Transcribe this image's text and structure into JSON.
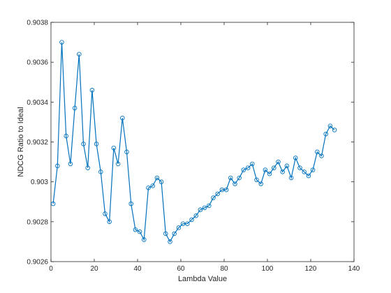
{
  "chart_data": {
    "type": "line",
    "title": "",
    "xlabel": "Lambda Value",
    "ylabel": "NDCG Ratio to Ideal",
    "xlim": [
      0,
      140
    ],
    "ylim": [
      0.9026,
      0.9038
    ],
    "xticks": [
      0,
      20,
      40,
      60,
      80,
      100,
      120,
      140
    ],
    "xtick_labels": [
      "0",
      "20",
      "40",
      "60",
      "80",
      "100",
      "120",
      "140"
    ],
    "yticks": [
      0.9026,
      0.9028,
      0.903,
      0.9032,
      0.9034,
      0.9036,
      0.9038
    ],
    "ytick_labels": [
      "0.9026",
      "0.9028",
      "0.903",
      "0.9032",
      "0.9034",
      "0.9036",
      "0.9038"
    ],
    "grid": false,
    "legend": "none",
    "color": "#0072bd",
    "marker": "circle",
    "series": [
      {
        "x": [
          1,
          3,
          5,
          7,
          9,
          11,
          13,
          15,
          17,
          19,
          21,
          23,
          25,
          27,
          29,
          31,
          33,
          35,
          37,
          39,
          41,
          43,
          45,
          47,
          49,
          51,
          53,
          55,
          57,
          59,
          61,
          63,
          65,
          67,
          69,
          71,
          73,
          75,
          77,
          79,
          81,
          83,
          85,
          87,
          89,
          91,
          93,
          95,
          97,
          99,
          101,
          103,
          105,
          107,
          109,
          111,
          113,
          115,
          117,
          119,
          121,
          123,
          125,
          127,
          129,
          131
        ],
        "values": [
          0.90289,
          0.90308,
          0.9037,
          0.90323,
          0.90309,
          0.90337,
          0.90364,
          0.90319,
          0.90307,
          0.90346,
          0.90319,
          0.90305,
          0.90284,
          0.9028,
          0.90317,
          0.90309,
          0.90332,
          0.90315,
          0.90289,
          0.90276,
          0.90275,
          0.90271,
          0.90297,
          0.90298,
          0.90302,
          0.903,
          0.90274,
          0.9027,
          0.90274,
          0.90277,
          0.90279,
          0.90279,
          0.90281,
          0.90283,
          0.90286,
          0.90287,
          0.90288,
          0.90292,
          0.90294,
          0.90296,
          0.90296,
          0.90302,
          0.90299,
          0.90302,
          0.90306,
          0.90307,
          0.90309,
          0.90301,
          0.90299,
          0.90306,
          0.90304,
          0.90307,
          0.9031,
          0.90305,
          0.90308,
          0.90302,
          0.90312,
          0.90307,
          0.90305,
          0.90303,
          0.90306,
          0.90315,
          0.90313,
          0.90324,
          0.90328,
          0.90326
        ]
      }
    ]
  }
}
